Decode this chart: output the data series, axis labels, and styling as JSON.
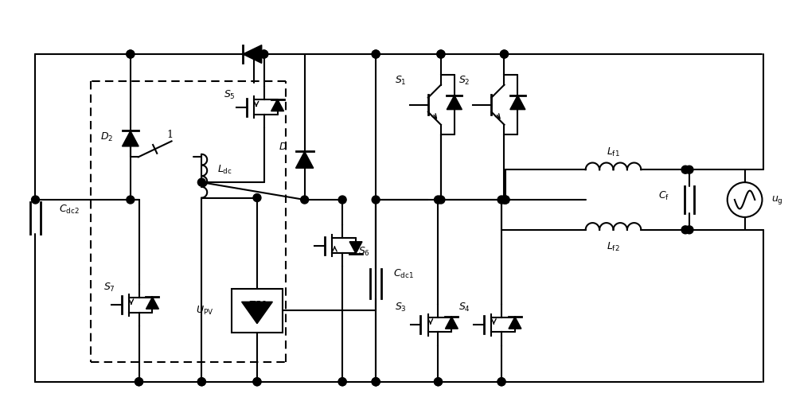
{
  "fig_width": 10.0,
  "fig_height": 5.09,
  "bg_color": "#ffffff",
  "line_color": "#000000",
  "line_width": 1.5
}
